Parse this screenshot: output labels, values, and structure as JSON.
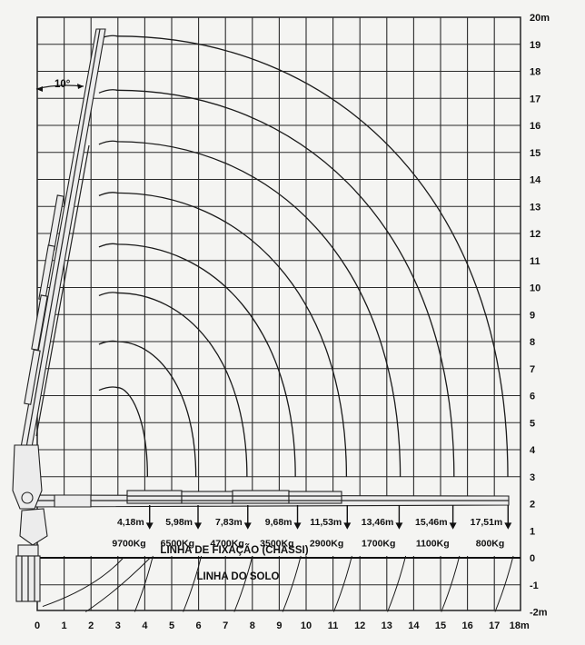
{
  "chart_data": {
    "type": "diagram",
    "x_ticks": [
      "0",
      "1",
      "2",
      "3",
      "4",
      "5",
      "6",
      "7",
      "8",
      "9",
      "10",
      "11",
      "12",
      "13",
      "14",
      "15",
      "16",
      "17"
    ],
    "x_end_label": "18m",
    "y_ticks": [
      "20m",
      "19",
      "18",
      "17",
      "16",
      "15",
      "14",
      "13",
      "12",
      "11",
      "10",
      "9",
      "8",
      "7",
      "6",
      "5",
      "4",
      "3",
      "2",
      "1",
      "0",
      "-1",
      "-2m"
    ],
    "x_range": [
      0,
      18
    ],
    "y_range": [
      -2,
      20
    ],
    "angle_label": "10°",
    "fixation_label": "LINHA DE FIXAÇÃO (CHASSI)",
    "ground_label": "LINHA DO SOLO",
    "load_points": [
      {
        "reach": "4,18m",
        "load": "9700Kg",
        "reach_m": 4.18
      },
      {
        "reach": "5,98m",
        "load": "6500Kg",
        "reach_m": 5.98
      },
      {
        "reach": "7,83m",
        "load": "4700Kg",
        "reach_m": 7.83
      },
      {
        "reach": "9,68m",
        "load": "3500Kg",
        "reach_m": 9.68
      },
      {
        "reach": "11,53m",
        "load": "2900Kg",
        "reach_m": 11.53
      },
      {
        "reach": "13,46m",
        "load": "1700Kg",
        "reach_m": 13.46
      },
      {
        "reach": "15,46m",
        "load": "1100Kg",
        "reach_m": 15.46
      },
      {
        "reach": "17,51m",
        "load": "800Kg",
        "reach_m": 17.51
      }
    ],
    "reach_arcs": [
      {
        "top_y": 6.3,
        "end_x": 4.1
      },
      {
        "top_y": 8.0,
        "end_x": 5.9
      },
      {
        "top_y": 9.8,
        "end_x": 7.8
      },
      {
        "top_y": 11.6,
        "end_x": 9.6
      },
      {
        "top_y": 13.5,
        "end_x": 11.5
      },
      {
        "top_y": 15.4,
        "end_x": 13.5
      },
      {
        "top_y": 17.3,
        "end_x": 15.5
      },
      {
        "top_y": 19.3,
        "end_x": 17.5
      }
    ]
  }
}
